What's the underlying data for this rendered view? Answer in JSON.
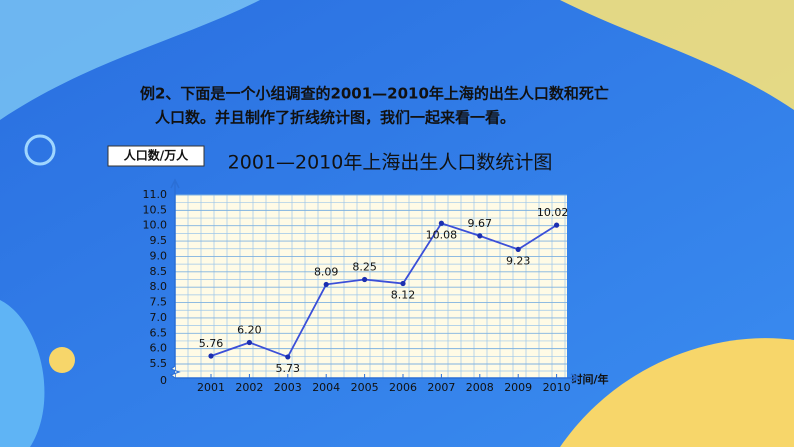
{
  "intro": {
    "lines": [
      "例2、下面是一个小组调查的2001—2010年上海的出生人口数和死亡",
      "人口数。并且制作了折线统计图，我们一起来看一看。"
    ]
  },
  "chart_data": {
    "type": "line",
    "title": "2001—2010年上海出生人口数统计图",
    "y_label": "人口数/万人",
    "x_label": "时间/年",
    "categories": [
      "2001",
      "2002",
      "2003",
      "2004",
      "2005",
      "2006",
      "2007",
      "2008",
      "2009",
      "2010"
    ],
    "values": [
      5.76,
      6.2,
      5.73,
      8.09,
      8.25,
      8.12,
      10.08,
      9.67,
      9.23,
      10.02
    ],
    "value_labels": [
      "5.76",
      "6.20",
      "5.73",
      "8.09",
      "8.25",
      "8.12",
      "10.08",
      "9.67",
      "9.23",
      "10.02"
    ],
    "color": "#3b4fd8",
    "ylim": [
      5.5,
      11.0
    ],
    "yticks": [
      5.5,
      {
        "value": 6,
        "label": "6.0"
      },
      6.5,
      {
        "value": 7,
        "label": "7.0"
      },
      7.5,
      {
        "value": 8,
        "label": "8.0"
      },
      8.5,
      {
        "value": 9,
        "label": "9.0"
      },
      9.5,
      {
        "value": 10,
        "label": "10.0"
      },
      10.5,
      {
        "value": 11,
        "label": "11.0"
      }
    ],
    "y_origin": 0,
    "grid": true
  }
}
